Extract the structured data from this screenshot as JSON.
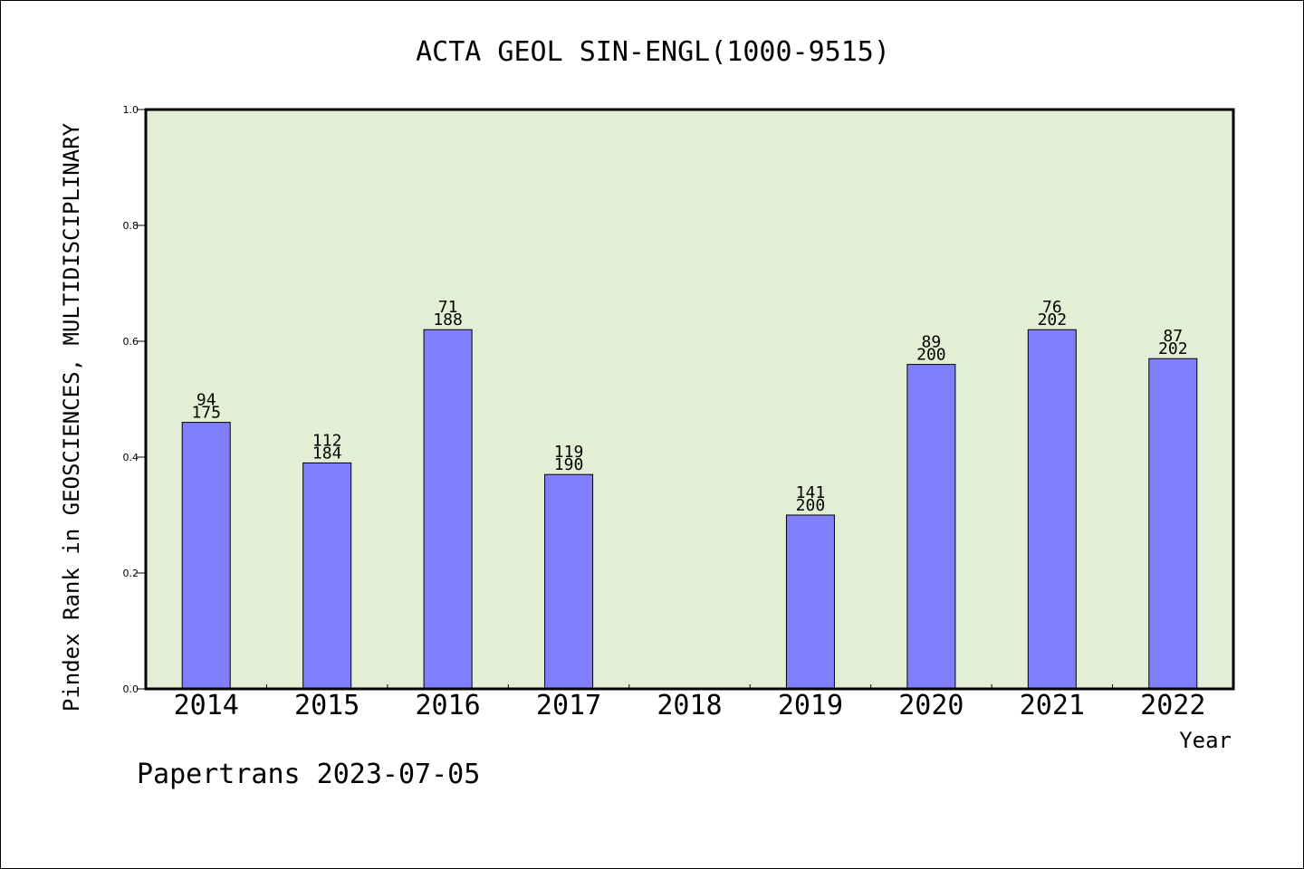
{
  "chart_data": {
    "type": "bar",
    "title": "ACTA GEOL SIN-ENGL(1000-9515)",
    "xlabel": "Year",
    "ylabel": "Pindex Rank in GEOSCIENCES, MULTIDISCIPLINARY",
    "ylim": [
      0.0,
      1.0
    ],
    "yticks": [
      "0.0",
      "0.2",
      "0.4",
      "0.6",
      "0.8",
      "1.0"
    ],
    "categories": [
      "2014",
      "2015",
      "2016",
      "2017",
      "2018",
      "2019",
      "2020",
      "2021",
      "2022"
    ],
    "values": [
      0.46,
      0.39,
      0.62,
      0.37,
      null,
      0.3,
      0.56,
      0.62,
      0.57
    ],
    "rank_labels": [
      "94",
      "112",
      "71",
      "119",
      "",
      "141",
      "89",
      "76",
      "87"
    ],
    "total_labels": [
      "175",
      "184",
      "188",
      "190",
      "",
      "200",
      "200",
      "202",
      "202"
    ],
    "grid": false,
    "colors": {
      "bar": "#8080ff",
      "plot_background": "#e2efd4",
      "bar_edge": "#000000"
    }
  },
  "footer": "Papertrans 2023-07-05"
}
